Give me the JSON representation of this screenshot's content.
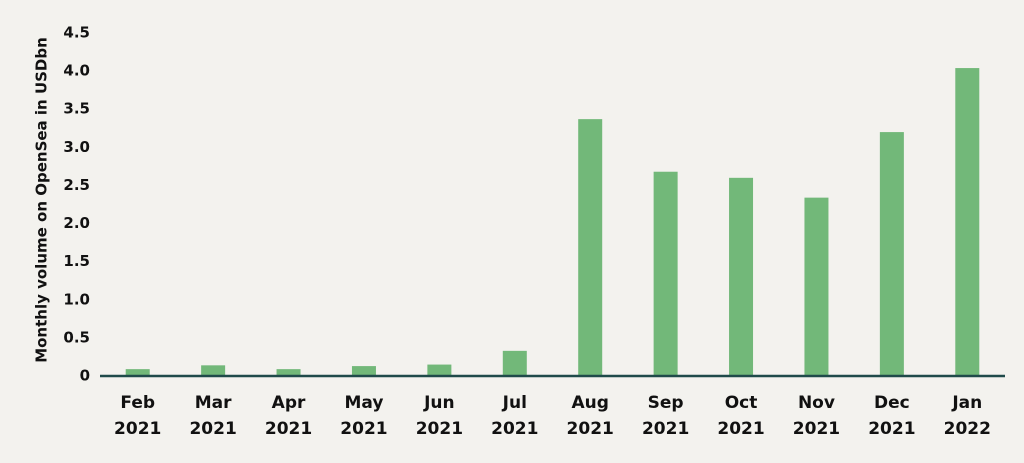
{
  "chart_data": {
    "type": "bar",
    "y_label": "Monthly volume on OpenSea in USDbn",
    "categories": [
      "Feb 2021",
      "Mar 2021",
      "Apr 2021",
      "May 2021",
      "Jun 2021",
      "Jul 2021",
      "Aug 2021",
      "Sep 2021",
      "Oct 2021",
      "Nov 2021",
      "Dec 2021",
      "Jan 2022"
    ],
    "values": [
      0.09,
      0.14,
      0.09,
      0.13,
      0.15,
      0.33,
      3.37,
      2.68,
      2.6,
      2.34,
      3.2,
      4.04
    ],
    "color": "#72b879",
    "ylim": [
      0,
      4.5
    ],
    "yticks": [
      0,
      0.5,
      {
        "value": 1,
        "label": "1.0"
      },
      1.5,
      {
        "value": 2,
        "label": "2.0"
      },
      2.5,
      {
        "value": 3,
        "label": "3.0"
      },
      3.5,
      {
        "value": 4,
        "label": "4.0"
      },
      4.5
    ],
    "grid": false
  }
}
